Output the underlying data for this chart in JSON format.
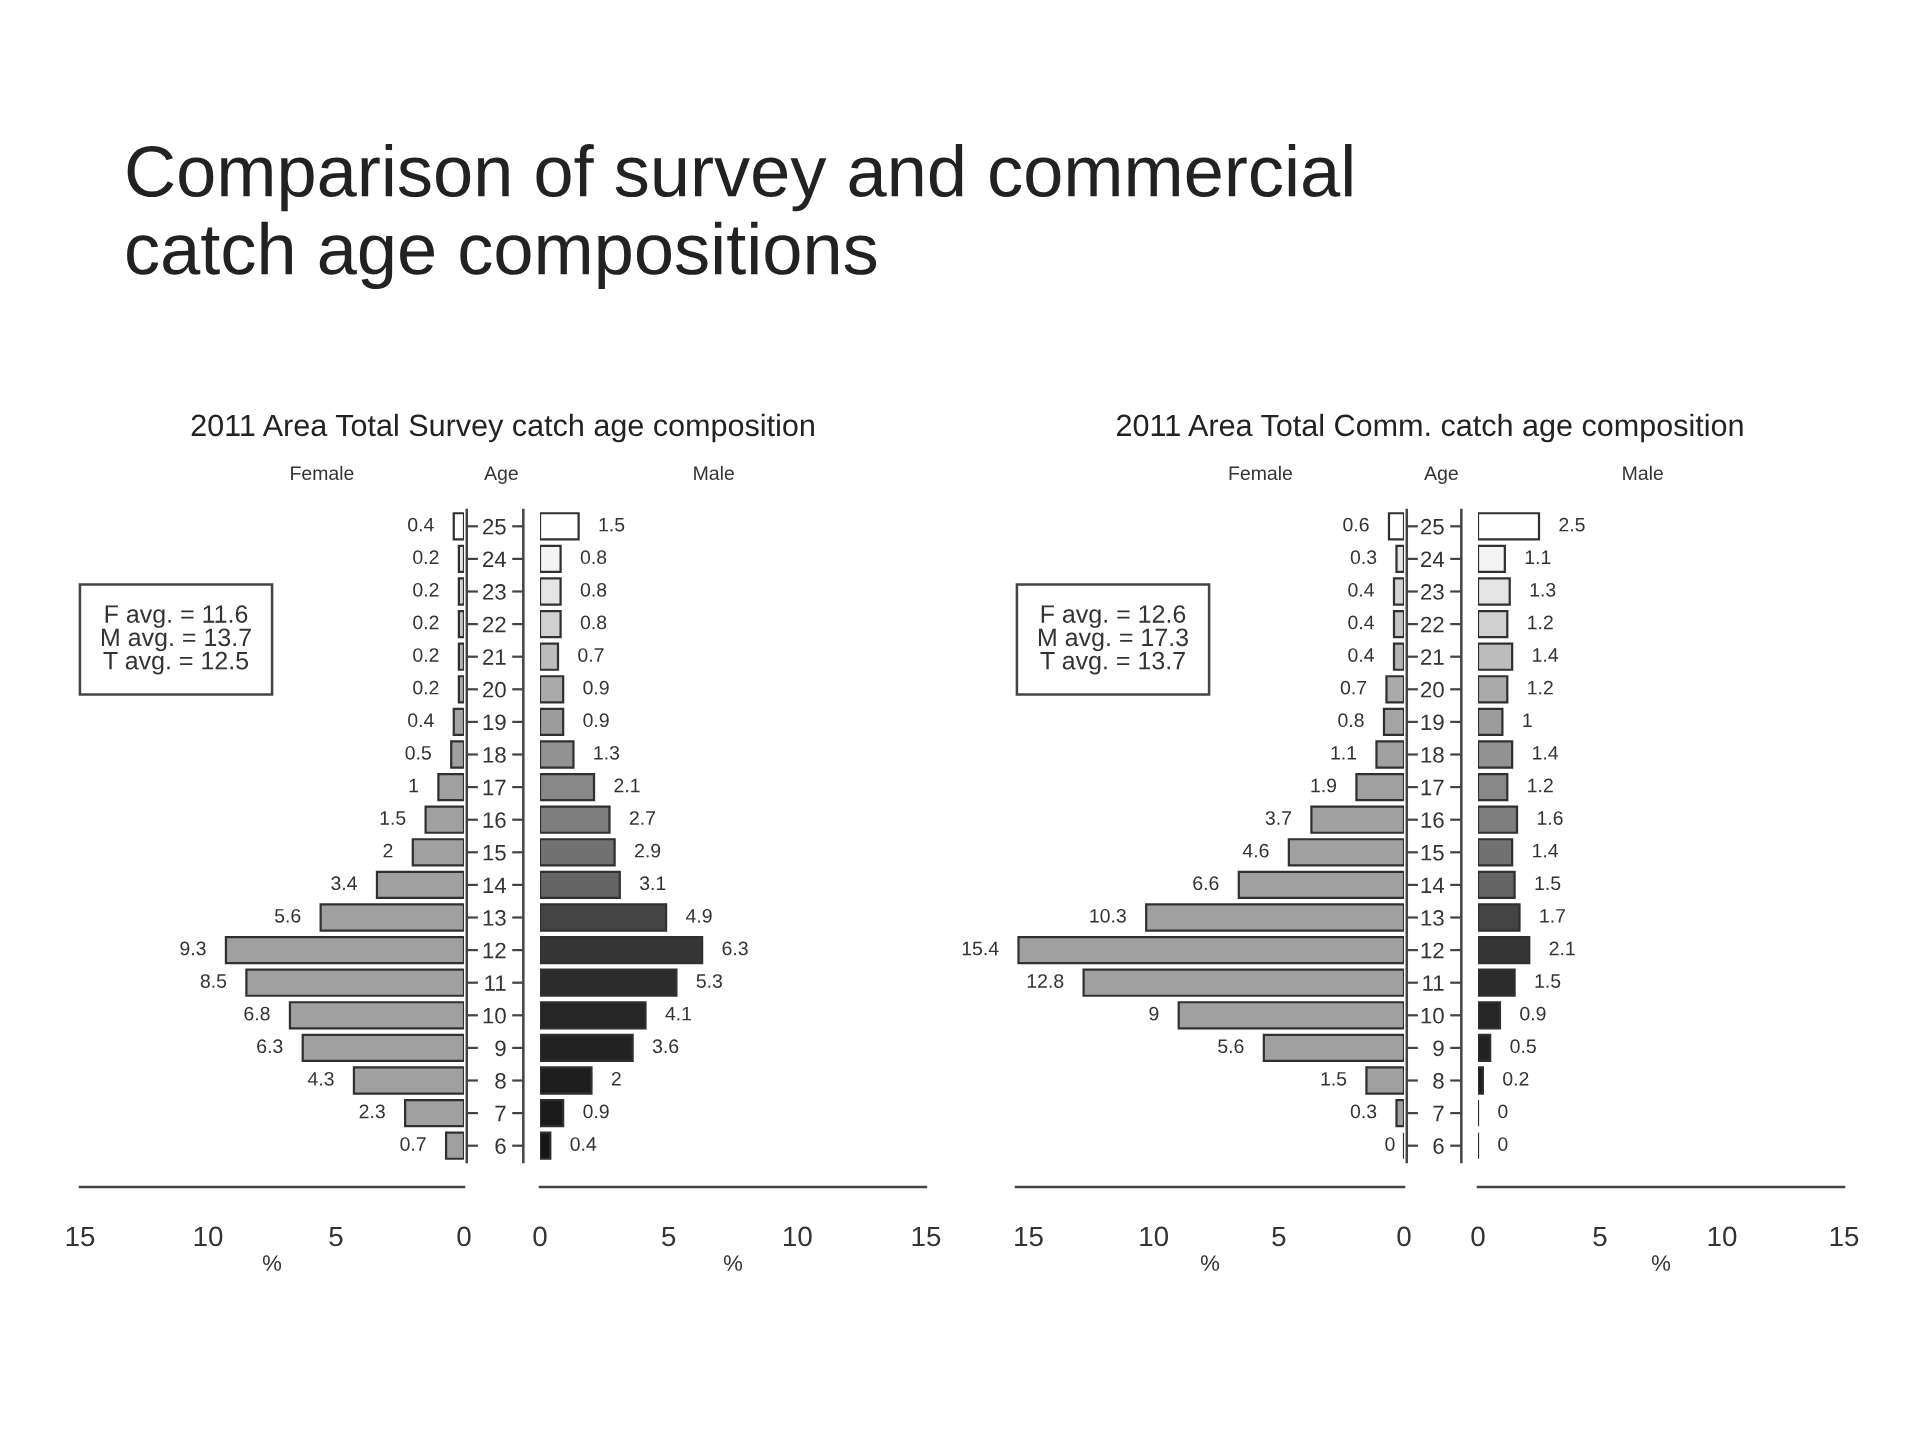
{
  "chart_data": [
    {
      "type": "bar",
      "orientation": "horizontal",
      "title": "Comparison of survey and commercial\ncatch age compositions",
      "subtitle": "2011 Area Total Survey catch age composition",
      "xlabel": "%",
      "annotations": [
        "Female",
        "F avg. = 11.6",
        "M avg. = 13.7",
        "T avg. = 12.5"
      ],
      "categories": [
        "25",
        "24",
        "23",
        "22",
        "21",
        "20",
        "19",
        "18",
        "17",
        "16",
        "15",
        "14",
        "13",
        "12",
        "11",
        "10",
        "9",
        "8",
        "7",
        "6"
      ],
      "values": [
        0.4,
        0.2,
        0.2,
        0.2,
        0.2,
        0.2,
        0.4,
        0.5,
        1,
        1.5,
        2,
        3.4,
        5.6,
        9.3,
        8.5,
        6.8,
        6.3,
        4.3,
        2.3,
        0.7
      ],
      "colors": [
        "#ffffff",
        "#e6e6e6",
        "#d4d4d4",
        "#c4c4c4",
        "#b4b4b4",
        "#aaaaaa",
        "#a4a4a4",
        "#a0a0a0",
        "#a0a0a0",
        "#a0a0a0",
        "#a0a0a0",
        "#a0a0a0",
        "#a0a0a0",
        "#a0a0a0",
        "#a0a0a0",
        "#a0a0a0",
        "#a0a0a0",
        "#a0a0a0",
        "#a0a0a0",
        "#a0a0a0"
      ],
      "xlim": [
        15,
        0
      ],
      "xticks": [
        15,
        10,
        5,
        0
      ],
      "data_labels": true,
      "tick_labels": "x"
    },
    {
      "type": "bar",
      "orientation": "horizontal",
      "ylabel": "Age",
      "xlabel": "%",
      "annotations": [
        "Male"
      ],
      "categories": [
        "25",
        "24",
        "23",
        "22",
        "21",
        "20",
        "19",
        "18",
        "17",
        "16",
        "15",
        "14",
        "13",
        "12",
        "11",
        "10",
        "9",
        "8",
        "7",
        "6"
      ],
      "values": [
        1.5,
        0.8,
        0.8,
        0.8,
        0.7,
        0.9,
        0.9,
        1.3,
        2.1,
        2.7,
        2.9,
        3.1,
        4.9,
        6.3,
        5.3,
        4.1,
        3.6,
        2,
        0.9,
        0.4
      ],
      "colors": [
        "#ffffff",
        "#f4f4f4",
        "#e4e4e4",
        "#d0d0d0",
        "#bcbcbc",
        "#aaaaaa",
        "#9c9c9c",
        "#929292",
        "#888888",
        "#7e7e7e",
        "#727272",
        "#646464",
        "#444444",
        "#363636",
        "#2c2c2c",
        "#262626",
        "#222222",
        "#1e1e1e",
        "#1a1a1a",
        "#161616"
      ],
      "xlim": [
        0,
        15
      ],
      "xticks": [
        0,
        5,
        10,
        15
      ],
      "data_labels": true
    },
    {
      "type": "bar",
      "orientation": "horizontal",
      "subtitle": "2011 Area Total Comm. catch age composition",
      "xlabel": "%",
      "annotations": [
        "Female",
        "F avg. = 12.6",
        "M avg. = 17.3",
        "T avg. = 13.7"
      ],
      "categories": [
        "25",
        "24",
        "23",
        "22",
        "21",
        "20",
        "19",
        "18",
        "17",
        "16",
        "15",
        "14",
        "13",
        "12",
        "11",
        "10",
        "9",
        "8",
        "7",
        "6"
      ],
      "values": [
        0.6,
        0.3,
        0.4,
        0.4,
        0.4,
        0.7,
        0.8,
        1.1,
        1.9,
        3.7,
        4.6,
        6.6,
        10.3,
        15.4,
        12.8,
        9,
        5.6,
        1.5,
        0.3,
        0
      ],
      "colors": [
        "#ffffff",
        "#e6e6e6",
        "#d4d4d4",
        "#c4c4c4",
        "#b4b4b4",
        "#aaaaaa",
        "#a4a4a4",
        "#a0a0a0",
        "#a0a0a0",
        "#a0a0a0",
        "#a0a0a0",
        "#a0a0a0",
        "#a0a0a0",
        "#a0a0a0",
        "#a0a0a0",
        "#a0a0a0",
        "#a0a0a0",
        "#a0a0a0",
        "#a0a0a0",
        "#303030"
      ],
      "xlim": [
        15.5,
        0
      ],
      "xticks": [
        15,
        10,
        5,
        0
      ],
      "data_labels": true,
      "tick_labels": "x"
    },
    {
      "type": "bar",
      "orientation": "horizontal",
      "ylabel": "Age",
      "xlabel": "%",
      "annotations": [
        "Male"
      ],
      "categories": [
        "25",
        "24",
        "23",
        "22",
        "21",
        "20",
        "19",
        "18",
        "17",
        "16",
        "15",
        "14",
        "13",
        "12",
        "11",
        "10",
        "9",
        "8",
        "7",
        "6"
      ],
      "values": [
        2.5,
        1.1,
        1.3,
        1.2,
        1.4,
        1.2,
        1,
        1.4,
        1.2,
        1.6,
        1.4,
        1.5,
        1.7,
        2.1,
        1.5,
        0.9,
        0.5,
        0.2,
        0,
        0
      ],
      "colors": [
        "#ffffff",
        "#f4f4f4",
        "#e4e4e4",
        "#d0d0d0",
        "#bcbcbc",
        "#aaaaaa",
        "#9c9c9c",
        "#929292",
        "#888888",
        "#7e7e7e",
        "#727272",
        "#646464",
        "#444444",
        "#363636",
        "#2c2c2c",
        "#262626",
        "#222222",
        "#1e1e1e",
        "#303030",
        "#303030"
      ],
      "xlim": [
        0,
        15
      ],
      "xticks": [
        0,
        5,
        10,
        15
      ],
      "data_labels": true
    }
  ]
}
